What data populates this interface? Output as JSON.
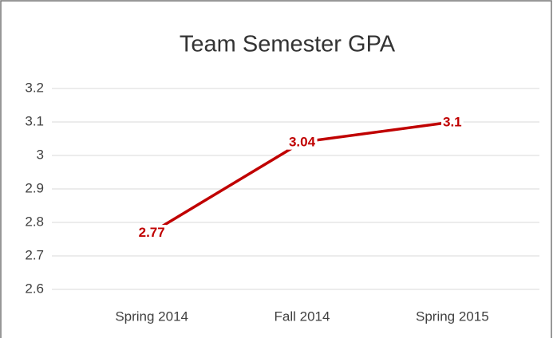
{
  "chart_data": {
    "type": "line",
    "title": "Team Semester GPA",
    "categories": [
      "Spring 2014",
      "Fall 2014",
      "Spring 2015"
    ],
    "values": [
      2.77,
      3.04,
      3.1
    ],
    "color": "#c00000",
    "ylim": [
      2.6,
      3.2
    ],
    "yticks": [
      2.6,
      2.7,
      2.8,
      2.9,
      3,
      3.1,
      3.2
    ],
    "grid": true
  }
}
